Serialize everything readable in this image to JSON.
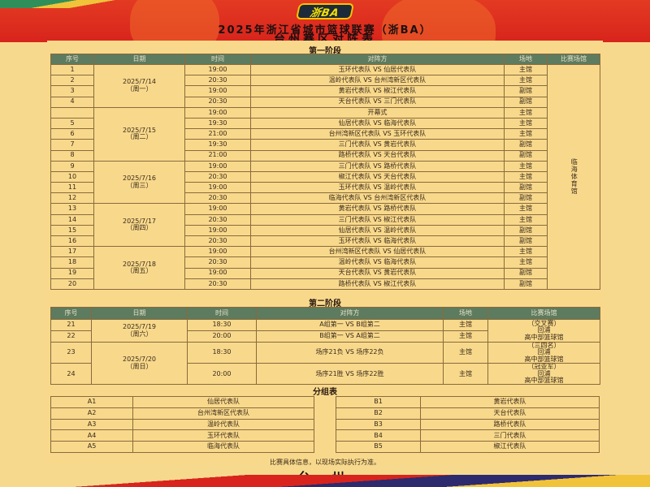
{
  "header": {
    "logo_text": "浙BA",
    "title": "2025年浙江省城市篮球联赛（浙BA）",
    "subtitle": "台州赛区对阵表"
  },
  "colors": {
    "banner": "#d8241c",
    "panel": "#f8d98c",
    "table_header": "#5d7b5f"
  },
  "stage1": {
    "title": "第一阶段",
    "headers": [
      "序号",
      "日期",
      "时间",
      "对阵方",
      "场地",
      "比赛场馆"
    ],
    "hall": "临海体育馆",
    "days": [
      {
        "date": "2025/7/14",
        "weekday": "（周一）",
        "matches": [
          {
            "no": "1",
            "time": "19:00",
            "match": "玉环代表队 VS 仙居代表队",
            "venue": "主馆"
          },
          {
            "no": "2",
            "time": "20:30",
            "match": "温岭代表队 VS 台州湾新区代表队",
            "venue": "主馆"
          },
          {
            "no": "3",
            "time": "19:00",
            "match": "黄岩代表队 VS 椒江代表队",
            "venue": "副馆"
          },
          {
            "no": "4",
            "time": "20:30",
            "match": "天台代表队 VS 三门代表队",
            "venue": "副馆"
          }
        ]
      },
      {
        "date": "2025/7/15",
        "weekday": "（周二）",
        "matches": [
          {
            "no": "",
            "time": "19:00",
            "match": "开幕式",
            "venue": "主馆"
          },
          {
            "no": "5",
            "time": "19:30",
            "match": "仙居代表队 VS 临海代表队",
            "venue": "主馆"
          },
          {
            "no": "6",
            "time": "21:00",
            "match": "台州湾新区代表队 VS 玉环代表队",
            "venue": "主馆"
          },
          {
            "no": "7",
            "time": "19:30",
            "match": "三门代表队 VS 黄岩代表队",
            "venue": "副馆"
          },
          {
            "no": "8",
            "time": "21:00",
            "match": "路桥代表队 VS 天台代表队",
            "venue": "副馆"
          }
        ]
      },
      {
        "date": "2025/7/16",
        "weekday": "（周三）",
        "matches": [
          {
            "no": "9",
            "time": "19:00",
            "match": "三门代表队 VS 路桥代表队",
            "venue": "主馆"
          },
          {
            "no": "10",
            "time": "20:30",
            "match": "椒江代表队 VS 天台代表队",
            "venue": "主馆"
          },
          {
            "no": "11",
            "time": "19:00",
            "match": "玉环代表队 VS 温岭代表队",
            "venue": "副馆"
          },
          {
            "no": "12",
            "time": "20:30",
            "match": "临海代表队 VS 台州湾新区代表队",
            "venue": "副馆"
          }
        ]
      },
      {
        "date": "2025/7/17",
        "weekday": "（周四）",
        "matches": [
          {
            "no": "13",
            "time": "19:00",
            "match": "黄岩代表队 VS 路桥代表队",
            "venue": "主馆"
          },
          {
            "no": "14",
            "time": "20:30",
            "match": "三门代表队 VS 椒江代表队",
            "venue": "主馆"
          },
          {
            "no": "15",
            "time": "19:00",
            "match": "仙居代表队 VS 温岭代表队",
            "venue": "副馆"
          },
          {
            "no": "16",
            "time": "20:30",
            "match": "玉环代表队 VS 临海代表队",
            "venue": "副馆"
          }
        ]
      },
      {
        "date": "2025/7/18",
        "weekday": "（周五）",
        "matches": [
          {
            "no": "17",
            "time": "19:00",
            "match": "台州湾新区代表队 VS 仙居代表队",
            "venue": "主馆"
          },
          {
            "no": "18",
            "time": "20:30",
            "match": "温岭代表队 VS 临海代表队",
            "venue": "主馆"
          },
          {
            "no": "19",
            "time": "19:00",
            "match": "天台代表队 VS 黄岩代表队",
            "venue": "副馆"
          },
          {
            "no": "20",
            "time": "20:30",
            "match": "路桥代表队 VS 椒江代表队",
            "venue": "副馆"
          }
        ]
      }
    ]
  },
  "stage2": {
    "title": "第二阶段",
    "headers": [
      "序号",
      "日期",
      "时间",
      "对阵方",
      "场地",
      "比赛场馆"
    ],
    "days": [
      {
        "date": "2025/7/19",
        "weekday": "（周六）",
        "hall": [
          "（交叉赛）",
          "回浦",
          "高中部篮球馆"
        ],
        "matches": [
          {
            "no": "21",
            "time": "18:30",
            "match": "A组第一 VS B组第二",
            "venue": "主馆"
          },
          {
            "no": "22",
            "time": "20:00",
            "match": "B组第一 VS A组第二",
            "venue": "主馆"
          }
        ]
      },
      {
        "date": "2025/7/20",
        "weekday": "（周日）",
        "matches": [
          {
            "no": "23",
            "time": "18:30",
            "match": "场序21负 VS 场序22负",
            "venue": "主馆",
            "hall": [
              "（三四名）",
              "回浦",
              "高中部篮球馆"
            ]
          },
          {
            "no": "24",
            "time": "20:00",
            "match": "场序21胜 VS 场序22胜",
            "venue": "主馆",
            "hall": [
              "（冠亚军）",
              "回浦",
              "高中部篮球馆"
            ]
          }
        ]
      }
    ]
  },
  "groups": {
    "title": "分组表",
    "A": [
      {
        "seed": "A1",
        "team": "仙居代表队"
      },
      {
        "seed": "A2",
        "team": "台州湾新区代表队"
      },
      {
        "seed": "A3",
        "team": "温岭代表队"
      },
      {
        "seed": "A4",
        "team": "玉环代表队"
      },
      {
        "seed": "A5",
        "team": "临海代表队"
      }
    ],
    "B": [
      {
        "seed": "B1",
        "team": "黄岩代表队"
      },
      {
        "seed": "B2",
        "team": "天台代表队"
      },
      {
        "seed": "B3",
        "team": "路桥代表队"
      },
      {
        "seed": "B4",
        "team": "三门代表队"
      },
      {
        "seed": "B5",
        "team": "椒江代表队"
      }
    ]
  },
  "footer": {
    "note": "比赛具体信息，以现场实际执行为准。",
    "city": "- 台 州 -"
  }
}
